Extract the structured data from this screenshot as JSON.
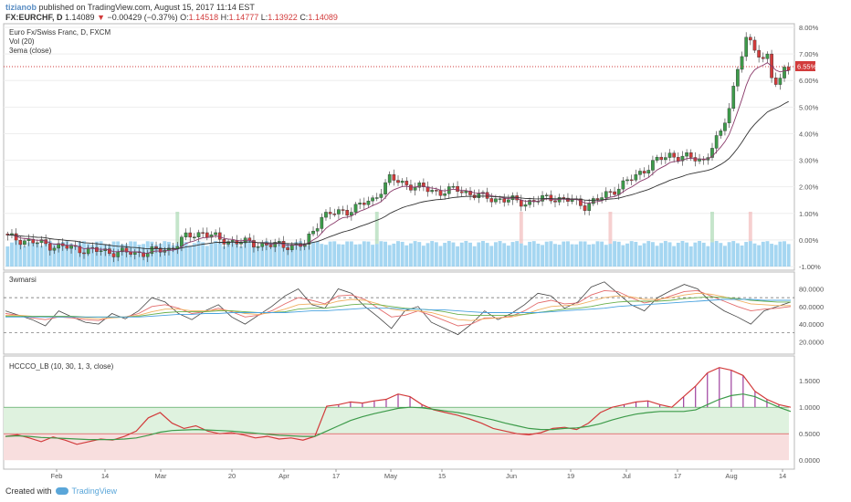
{
  "header": {
    "user": "tizianob",
    "published": "published on TradingView.com, August 15, 2017 11:14 EST",
    "symbol": "FX:EURCHF, D",
    "price": "1.14089",
    "change": "−0.00429 (−0.37%)",
    "o_label": "O:",
    "o": "1.14518",
    "h_label": "H:",
    "h": "1.14777",
    "l_label": "L:",
    "l": "1.13922",
    "c_label": "C:",
    "c": "1.14089"
  },
  "main_pane": {
    "title": "Euro Fx/Swiss Franc, D, FXCM",
    "vol_label": "Vol (20)",
    "ema_label": "3ema (close)",
    "y_ticks": [
      "8.00%",
      "7.00%",
      "6.00%",
      "5.00%",
      "4.00%",
      "3.00%",
      "2.00%",
      "1.00%",
      "0.00%",
      "-1.00%"
    ],
    "last_value_badge": "6.55%"
  },
  "rsi_pane": {
    "title": "3wmarsi",
    "y_ticks": [
      "80.0000",
      "60.0000",
      "40.0000",
      "20.0000"
    ]
  },
  "hccco_pane": {
    "title": "HCCCO_LB (10, 30, 1, 3, close)",
    "y_ticks": [
      "1.5000",
      "1.0000",
      "0.5000",
      "0.0000"
    ]
  },
  "x_ticks": [
    "Feb",
    "14",
    "Mar",
    "20",
    "Apr",
    "17",
    "May",
    "15",
    "Jun",
    "19",
    "Jul",
    "17",
    "Aug",
    "14"
  ],
  "footer": {
    "created": "Created with",
    "brand": "TradingView"
  },
  "colors": {
    "up": "#3d9b4a",
    "down": "#d23b3b",
    "ema_fast": "#8a3a6a",
    "ema_slow": "#333333",
    "volume": "#5bb4e5",
    "rsi_black": "#444444",
    "rsi_red": "#e36b6b",
    "rsi_orange": "#f0b060",
    "rsi_green": "#6ab04c",
    "rsi_blue": "#4aa3df",
    "hccco_red": "#d23b3b",
    "hccco_green": "#3d9b4a",
    "hist_purple": "#8a1a8a"
  },
  "chart_data": [
    {
      "type": "candlestick",
      "title": "Euro Fx/Swiss Franc, D, FXCM",
      "ylabel": "",
      "ylim": [
        -1.0,
        8.0
      ],
      "anchors_percent_change": [
        [
          0,
          0.1
        ],
        [
          10,
          -0.2
        ],
        [
          20,
          -0.4
        ],
        [
          30,
          -0.5
        ],
        [
          38,
          -0.35
        ],
        [
          42,
          0.1
        ],
        [
          46,
          0.3
        ],
        [
          50,
          0.0
        ],
        [
          56,
          -0.1
        ],
        [
          62,
          -0.2
        ],
        [
          70,
          -0.2
        ],
        [
          74,
          0.9
        ],
        [
          80,
          1.1
        ],
        [
          86,
          1.5
        ],
        [
          90,
          2.3
        ],
        [
          96,
          2.0
        ],
        [
          102,
          1.8
        ],
        [
          106,
          1.9
        ],
        [
          112,
          1.6
        ],
        [
          118,
          1.5
        ],
        [
          122,
          1.4
        ],
        [
          128,
          1.6
        ],
        [
          132,
          1.5
        ],
        [
          136,
          1.3
        ],
        [
          140,
          1.6
        ],
        [
          144,
          2.0
        ],
        [
          148,
          2.4
        ],
        [
          152,
          2.9
        ],
        [
          156,
          3.2
        ],
        [
          160,
          3.1
        ],
        [
          164,
          3.0
        ],
        [
          168,
          4.0
        ],
        [
          170,
          5.0
        ],
        [
          172,
          6.5
        ],
        [
          174,
          7.5
        ],
        [
          176,
          7.2
        ],
        [
          178,
          6.8
        ],
        [
          179,
          7.0
        ],
        [
          180,
          6.2
        ],
        [
          181,
          5.8
        ],
        [
          182,
          5.9
        ],
        [
          183,
          6.5
        ],
        [
          184,
          6.55
        ]
      ],
      "volume_tall_bars_index": [
        40,
        87,
        121,
        142,
        166,
        175
      ]
    },
    {
      "type": "line",
      "title": "3wmarsi",
      "ylim": [
        10,
        95
      ],
      "guides": [
        70,
        30
      ],
      "series": [
        {
          "values": [
            55,
            50,
            45,
            38,
            55,
            48,
            42,
            40,
            52,
            46,
            55,
            70,
            65,
            52,
            45,
            55,
            62,
            48,
            40,
            50,
            60,
            72,
            80,
            62,
            58,
            80,
            75,
            60,
            48,
            35,
            55,
            60,
            42,
            35,
            28,
            40,
            55,
            45,
            52,
            62,
            75,
            72,
            58,
            65,
            82,
            88,
            75,
            62,
            55,
            70,
            78,
            85,
            80,
            65,
            55,
            48,
            40,
            55,
            60,
            65
          ]
        },
        {
          "values": [
            52,
            50,
            47,
            45,
            48,
            47,
            45,
            44,
            48,
            48,
            52,
            60,
            62,
            58,
            52,
            54,
            58,
            54,
            48,
            50,
            55,
            63,
            70,
            67,
            63,
            72,
            73,
            68,
            58,
            48,
            50,
            55,
            50,
            44,
            38,
            40,
            47,
            47,
            49,
            55,
            64,
            67,
            63,
            64,
            73,
            78,
            77,
            70,
            64,
            67,
            72,
            77,
            78,
            72,
            66,
            60,
            55,
            57,
            58,
            60
          ]
        },
        {
          "values": [
            50,
            50,
            49,
            48,
            48,
            48,
            47,
            46,
            47,
            48,
            50,
            54,
            57,
            57,
            55,
            55,
            56,
            55,
            52,
            51,
            53,
            57,
            62,
            63,
            62,
            66,
            68,
            67,
            63,
            57,
            55,
            55,
            53,
            49,
            45,
            44,
            46,
            47,
            48,
            51,
            56,
            60,
            61,
            62,
            66,
            70,
            72,
            71,
            68,
            68,
            70,
            73,
            75,
            74,
            71,
            67,
            63,
            62,
            61,
            61
          ]
        },
        {
          "values": [
            49,
            49,
            49,
            49,
            49,
            49,
            48,
            48,
            48,
            48,
            49,
            51,
            53,
            54,
            54,
            54,
            55,
            55,
            54,
            53,
            53,
            54,
            57,
            58,
            58,
            60,
            62,
            63,
            62,
            60,
            58,
            57,
            56,
            54,
            51,
            50,
            50,
            50,
            50,
            51,
            53,
            55,
            57,
            58,
            60,
            63,
            65,
            66,
            66,
            66,
            67,
            69,
            70,
            71,
            70,
            69,
            67,
            66,
            65,
            65
          ]
        },
        {
          "values": [
            48,
            48,
            48,
            48,
            48,
            48,
            48,
            48,
            48,
            48,
            48,
            49,
            50,
            51,
            51,
            52,
            52,
            53,
            53,
            53,
            53,
            53,
            54,
            55,
            55,
            56,
            57,
            58,
            58,
            58,
            57,
            57,
            56,
            56,
            55,
            54,
            53,
            53,
            53,
            53,
            53,
            54,
            55,
            56,
            57,
            58,
            60,
            61,
            62,
            63,
            64,
            65,
            66,
            67,
            68,
            68,
            68,
            67,
            67,
            67
          ]
        }
      ]
    },
    {
      "type": "line",
      "title": "HCCCO_LB (10, 30, 1, 3, close)",
      "ylim": [
        -0.1,
        1.9
      ],
      "guides": [
        1.0,
        0.5
      ],
      "series": [
        {
          "values": [
            0.45,
            0.48,
            0.42,
            0.35,
            0.44,
            0.38,
            0.3,
            0.35,
            0.4,
            0.38,
            0.45,
            0.55,
            0.8,
            0.9,
            0.7,
            0.6,
            0.65,
            0.55,
            0.5,
            0.52,
            0.48,
            0.42,
            0.45,
            0.4,
            0.42,
            0.38,
            0.45,
            1.02,
            1.05,
            1.1,
            1.08,
            1.12,
            1.15,
            1.25,
            1.2,
            1.05,
            0.95,
            0.9,
            0.85,
            0.78,
            0.7,
            0.6,
            0.55,
            0.5,
            0.48,
            0.52,
            0.6,
            0.62,
            0.58,
            0.7,
            0.9,
            1.0,
            1.05,
            1.1,
            1.12,
            1.05,
            1.0,
            1.2,
            1.4,
            1.65,
            1.75,
            1.7,
            1.6,
            1.3,
            1.15,
            1.05,
            1.0
          ]
        },
        {
          "values": [
            0.45,
            0.46,
            0.45,
            0.43,
            0.42,
            0.41,
            0.4,
            0.39,
            0.39,
            0.39,
            0.4,
            0.42,
            0.47,
            0.53,
            0.56,
            0.57,
            0.58,
            0.57,
            0.56,
            0.55,
            0.53,
            0.51,
            0.49,
            0.47,
            0.46,
            0.45,
            0.45,
            0.55,
            0.65,
            0.75,
            0.82,
            0.88,
            0.93,
            0.98,
            1.0,
            0.99,
            0.96,
            0.93,
            0.9,
            0.86,
            0.81,
            0.76,
            0.7,
            0.65,
            0.6,
            0.58,
            0.58,
            0.6,
            0.61,
            0.64,
            0.69,
            0.76,
            0.82,
            0.87,
            0.9,
            0.92,
            0.92,
            0.92,
            0.95,
            1.05,
            1.15,
            1.22,
            1.25,
            1.2,
            1.1,
            1.0,
            0.92
          ]
        }
      ]
    }
  ]
}
